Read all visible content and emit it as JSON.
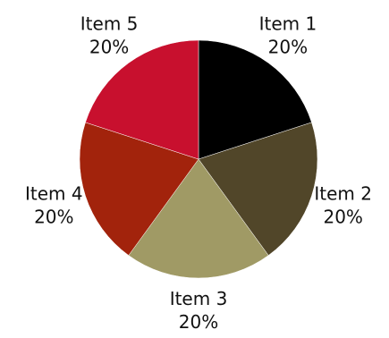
{
  "chart_data": {
    "type": "pie",
    "title": "",
    "start_angle_deg": 0,
    "direction": "clockwise",
    "slices": [
      {
        "label": "Item 1",
        "value": 20,
        "value_label": "20%",
        "color": "#000000"
      },
      {
        "label": "Item 2",
        "value": 20,
        "value_label": "20%",
        "color": "#514629"
      },
      {
        "label": "Item 3",
        "value": 20,
        "value_label": "20%",
        "color": "#a09a65"
      },
      {
        "label": "Item 4",
        "value": 20,
        "value_label": "20%",
        "color": "#a2230c"
      },
      {
        "label": "Item 5",
        "value": 20,
        "value_label": "20%",
        "color": "#c8102e"
      }
    ]
  }
}
